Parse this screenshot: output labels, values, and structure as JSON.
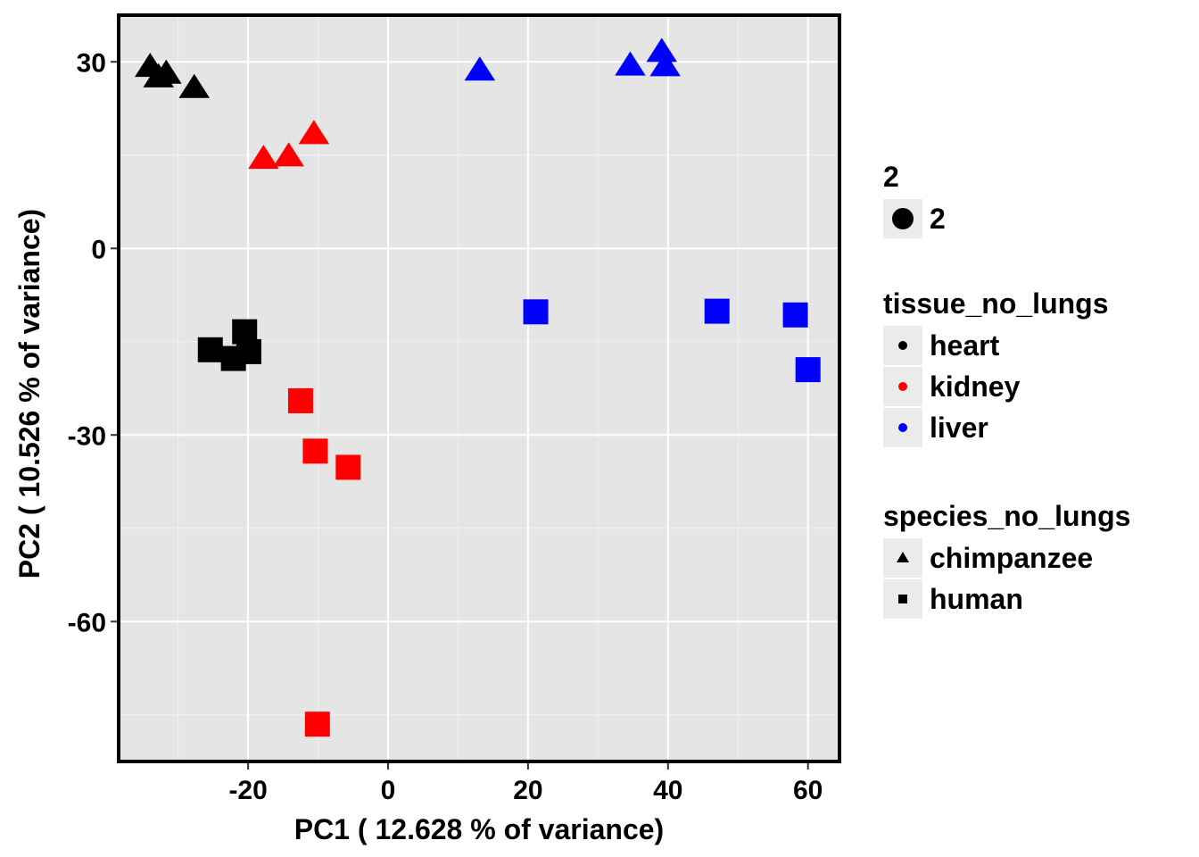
{
  "chart_data": {
    "type": "scatter",
    "xlabel": "PC1 ( 12.628 % of variance)",
    "ylabel": "PC2 ( 10.526 % of variance)",
    "xlim": [
      -38.5,
      64.5
    ],
    "ylim": [
      -82.5,
      37.5
    ],
    "x_ticks": [
      -20,
      0,
      20,
      40,
      60
    ],
    "x_tick_labels": [
      "-20",
      "0",
      "20",
      "40",
      "60"
    ],
    "y_ticks": [
      30,
      0,
      -30,
      -60
    ],
    "y_tick_labels": [
      "30",
      "0",
      "-30",
      "-60"
    ],
    "grid": true,
    "legend_position": "right",
    "colors": {
      "heart": "#000000",
      "kidney": "#ff0000",
      "liver": "#0000ff"
    },
    "points": [
      {
        "x": -34.0,
        "y": 29.2,
        "tissue": "heart",
        "species": "chimpanzee"
      },
      {
        "x": -32.8,
        "y": 27.5,
        "tissue": "heart",
        "species": "chimpanzee"
      },
      {
        "x": -31.7,
        "y": 28.1,
        "tissue": "heart",
        "species": "chimpanzee"
      },
      {
        "x": -27.7,
        "y": 25.8,
        "tissue": "heart",
        "species": "chimpanzee"
      },
      {
        "x": -17.8,
        "y": 14.4,
        "tissue": "kidney",
        "species": "chimpanzee"
      },
      {
        "x": -14.2,
        "y": 14.8,
        "tissue": "kidney",
        "species": "chimpanzee"
      },
      {
        "x": -10.6,
        "y": 18.4,
        "tissue": "kidney",
        "species": "chimpanzee"
      },
      {
        "x": 13.1,
        "y": 28.6,
        "tissue": "liver",
        "species": "chimpanzee"
      },
      {
        "x": 34.6,
        "y": 29.4,
        "tissue": "liver",
        "species": "chimpanzee"
      },
      {
        "x": 39.1,
        "y": 31.6,
        "tissue": "liver",
        "species": "chimpanzee"
      },
      {
        "x": 39.6,
        "y": 29.3,
        "tissue": "liver",
        "species": "chimpanzee"
      },
      {
        "x": -25.4,
        "y": -16.3,
        "tissue": "heart",
        "species": "human"
      },
      {
        "x": -22.1,
        "y": -17.7,
        "tissue": "heart",
        "species": "human"
      },
      {
        "x": -20.5,
        "y": -13.4,
        "tissue": "heart",
        "species": "human"
      },
      {
        "x": -19.9,
        "y": -16.6,
        "tissue": "heart",
        "species": "human"
      },
      {
        "x": -12.5,
        "y": -24.5,
        "tissue": "kidney",
        "species": "human"
      },
      {
        "x": -10.4,
        "y": -32.6,
        "tissue": "kidney",
        "species": "human"
      },
      {
        "x": -5.7,
        "y": -35.2,
        "tissue": "kidney",
        "species": "human"
      },
      {
        "x": -10.1,
        "y": -76.5,
        "tissue": "kidney",
        "species": "human"
      },
      {
        "x": 21.1,
        "y": -10.2,
        "tissue": "liver",
        "species": "human"
      },
      {
        "x": 47.0,
        "y": -10.1,
        "tissue": "liver",
        "species": "human"
      },
      {
        "x": 58.2,
        "y": -10.7,
        "tissue": "liver",
        "species": "human"
      },
      {
        "x": 60.0,
        "y": -19.5,
        "tissue": "liver",
        "species": "human"
      }
    ]
  },
  "legend": {
    "size": {
      "title": "2",
      "items": [
        {
          "label": "2"
        }
      ]
    },
    "tissue": {
      "title": "tissue_no_lungs",
      "items": [
        {
          "label": "heart",
          "color": "#000000"
        },
        {
          "label": "kidney",
          "color": "#ff0000"
        },
        {
          "label": "liver",
          "color": "#0000ff"
        }
      ]
    },
    "species": {
      "title": "species_no_lungs",
      "items": [
        {
          "label": "chimpanzee",
          "shape": "triangle"
        },
        {
          "label": "human",
          "shape": "square"
        }
      ]
    }
  }
}
